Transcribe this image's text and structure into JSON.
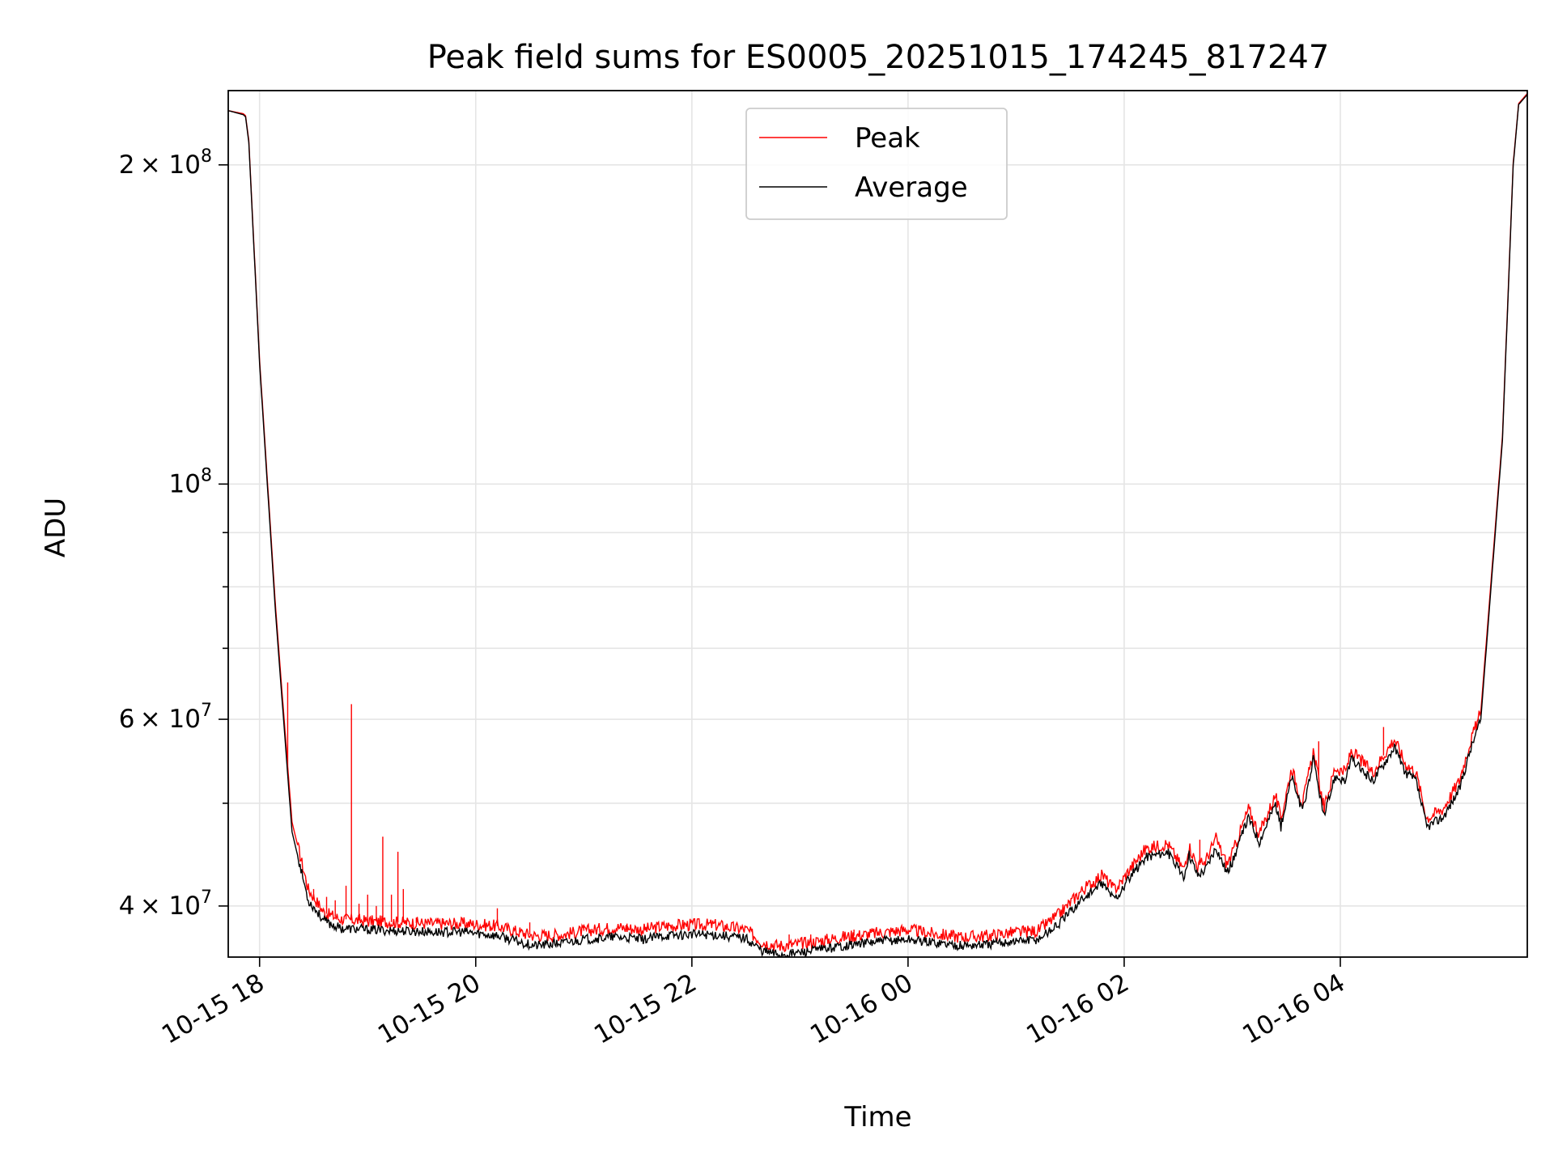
{
  "chart_data": {
    "type": "line",
    "title": "Peak field sums for ES0005_20251015_174245_817247",
    "xlabel": "Time",
    "ylabel": "ADU",
    "yscale": "log",
    "grid": true,
    "legend_position": "upper center",
    "x_unit": "hours since 2025-10-15 18:00",
    "xlim": [
      -0.29,
      11.73
    ],
    "ylim": [
      35800000,
      235000000
    ],
    "x_ticks": [
      {
        "value": 0,
        "label": "10-15 18"
      },
      {
        "value": 2,
        "label": "10-15 20"
      },
      {
        "value": 4,
        "label": "10-15 22"
      },
      {
        "value": 6,
        "label": "10-16 00"
      },
      {
        "value": 8,
        "label": "10-16 02"
      },
      {
        "value": 10,
        "label": "10-16 04"
      }
    ],
    "y_ticks": [
      {
        "value": 40000000,
        "base": "4",
        "label": "× 10"
      },
      {
        "value": 60000000,
        "base": "6",
        "label": "× 10"
      },
      {
        "value": 100000000,
        "base": "10",
        "label": ""
      },
      {
        "value": 200000000,
        "base": "2",
        "label": "× 10"
      }
    ],
    "y_tick_exponent": "8",
    "y_tick_exponent_small": "7",
    "y_minor_ticks": [
      50000000,
      70000000,
      80000000,
      90000000,
      300000000
    ],
    "legend": [
      {
        "name": "Peak",
        "color": "#ff0000"
      },
      {
        "name": "Average",
        "color": "#000000"
      }
    ],
    "series": [
      {
        "name": "Average",
        "color": "#000000",
        "x": [
          -0.29,
          -0.15,
          -0.13,
          -0.1,
          0.0,
          0.15,
          0.3,
          0.45,
          0.6,
          0.75,
          1.0,
          1.3,
          1.6,
          1.9,
          2.2,
          2.4,
          2.55,
          2.8,
          3.0,
          3.3,
          3.55,
          3.75,
          3.95,
          4.2,
          4.5,
          4.65,
          4.8,
          4.95,
          5.2,
          5.4,
          5.6,
          5.8,
          6.0,
          6.2,
          6.5,
          6.75,
          6.9,
          7.2,
          7.4,
          7.6,
          7.8,
          7.9,
          7.95,
          8.05,
          8.2,
          8.4,
          8.55,
          8.6,
          8.68,
          8.75,
          8.85,
          8.95,
          9.0,
          9.15,
          9.25,
          9.4,
          9.45,
          9.55,
          9.65,
          9.75,
          9.85,
          9.95,
          10.05,
          10.1,
          10.3,
          10.5,
          10.6,
          10.7,
          10.8,
          10.95,
          11.1,
          11.2,
          11.3,
          11.5,
          11.6,
          11.65,
          11.73
        ],
        "values": [
          225000000,
          223000000,
          222000000,
          210000000,
          130000000,
          75000000,
          47000000,
          40500000,
          38700000,
          38100000,
          38000000,
          37900000,
          37800000,
          37800000,
          37500000,
          37000000,
          36700000,
          36900000,
          37200000,
          37400000,
          37200000,
          37500000,
          37600000,
          37600000,
          37300000,
          36300000,
          36000000,
          36100000,
          36400000,
          36700000,
          36900000,
          37100000,
          37200000,
          37000000,
          36700000,
          36800000,
          37000000,
          37200000,
          38500000,
          40500000,
          42000000,
          40700000,
          41000000,
          42500000,
          44500000,
          45000000,
          42500000,
          44800000,
          42800000,
          43300000,
          45500000,
          43000000,
          44000000,
          48500000,
          46000000,
          50000000,
          47500000,
          53000000,
          49000000,
          55000000,
          48500000,
          53000000,
          52500000,
          55000000,
          52500000,
          56500000,
          53500000,
          52500000,
          47500000,
          48500000,
          51500000,
          56000000,
          60000000,
          110000000,
          200000000,
          228000000,
          233000000
        ]
      },
      {
        "name": "Peak",
        "color": "#ff0000",
        "x": [
          -0.29,
          -0.15,
          -0.13,
          -0.1,
          0.0,
          0.15,
          0.3,
          0.45,
          0.6,
          0.75,
          1.0,
          1.3,
          1.6,
          1.9,
          2.2,
          2.4,
          2.55,
          2.8,
          3.0,
          3.3,
          3.55,
          3.75,
          3.95,
          4.2,
          4.5,
          4.65,
          4.8,
          4.95,
          5.2,
          5.4,
          5.6,
          5.8,
          6.0,
          6.2,
          6.5,
          6.75,
          6.9,
          7.2,
          7.4,
          7.6,
          7.8,
          7.9,
          7.95,
          8.05,
          8.2,
          8.4,
          8.55,
          8.6,
          8.68,
          8.75,
          8.85,
          8.95,
          9.0,
          9.15,
          9.25,
          9.4,
          9.45,
          9.55,
          9.65,
          9.75,
          9.85,
          9.95,
          10.05,
          10.1,
          10.3,
          10.5,
          10.6,
          10.7,
          10.8,
          10.95,
          11.1,
          11.2,
          11.3,
          11.5,
          11.6,
          11.65,
          11.73
        ],
        "values": [
          225000000,
          223500000,
          222500000,
          211000000,
          131000000,
          76000000,
          48000000,
          41500000,
          39400000,
          38900000,
          38700000,
          38600000,
          38500000,
          38500000,
          38300000,
          37800000,
          37500000,
          37600000,
          37900000,
          38200000,
          38000000,
          38300000,
          38400000,
          38400000,
          38000000,
          37000000,
          36700000,
          36800000,
          37100000,
          37400000,
          37600000,
          37800000,
          38000000,
          37700000,
          37400000,
          37500000,
          37700000,
          37900000,
          39300000,
          41300000,
          42800000,
          41500000,
          41800000,
          43300000,
          45300000,
          45800000,
          43300000,
          45600000,
          43600000,
          44100000,
          46300000,
          43800000,
          44800000,
          49400000,
          46800000,
          50900000,
          48300000,
          54000000,
          49900000,
          56000000,
          49400000,
          54000000,
          53500000,
          56000000,
          53500000,
          57500000,
          54500000,
          53500000,
          48400000,
          49400000,
          52500000,
          57000000,
          61000000,
          111000000,
          201000000,
          228500000,
          233500000
        ]
      }
    ],
    "peak_spikes": [
      {
        "x": 0.26,
        "value": 65000000
      },
      {
        "x": 0.43,
        "value": 42000000
      },
      {
        "x": 0.5,
        "value": 41500000
      },
      {
        "x": 0.62,
        "value": 40800000
      },
      {
        "x": 0.7,
        "value": 40500000
      },
      {
        "x": 0.8,
        "value": 41800000
      },
      {
        "x": 0.85,
        "value": 62000000
      },
      {
        "x": 0.92,
        "value": 40200000
      },
      {
        "x": 1.0,
        "value": 41000000
      },
      {
        "x": 1.08,
        "value": 40000000
      },
      {
        "x": 1.14,
        "value": 46500000
      },
      {
        "x": 1.22,
        "value": 41000000
      },
      {
        "x": 1.28,
        "value": 45000000
      },
      {
        "x": 1.33,
        "value": 41500000
      },
      {
        "x": 1.45,
        "value": 39000000
      },
      {
        "x": 1.7,
        "value": 38900000
      },
      {
        "x": 2.2,
        "value": 39800000
      },
      {
        "x": 2.5,
        "value": 38600000
      },
      {
        "x": 3.0,
        "value": 38400000
      },
      {
        "x": 3.4,
        "value": 38500000
      },
      {
        "x": 4.9,
        "value": 37600000
      },
      {
        "x": 5.1,
        "value": 37600000
      },
      {
        "x": 5.5,
        "value": 38000000
      },
      {
        "x": 8.7,
        "value": 46200000
      },
      {
        "x": 9.8,
        "value": 57200000
      },
      {
        "x": 10.4,
        "value": 59000000
      }
    ]
  }
}
